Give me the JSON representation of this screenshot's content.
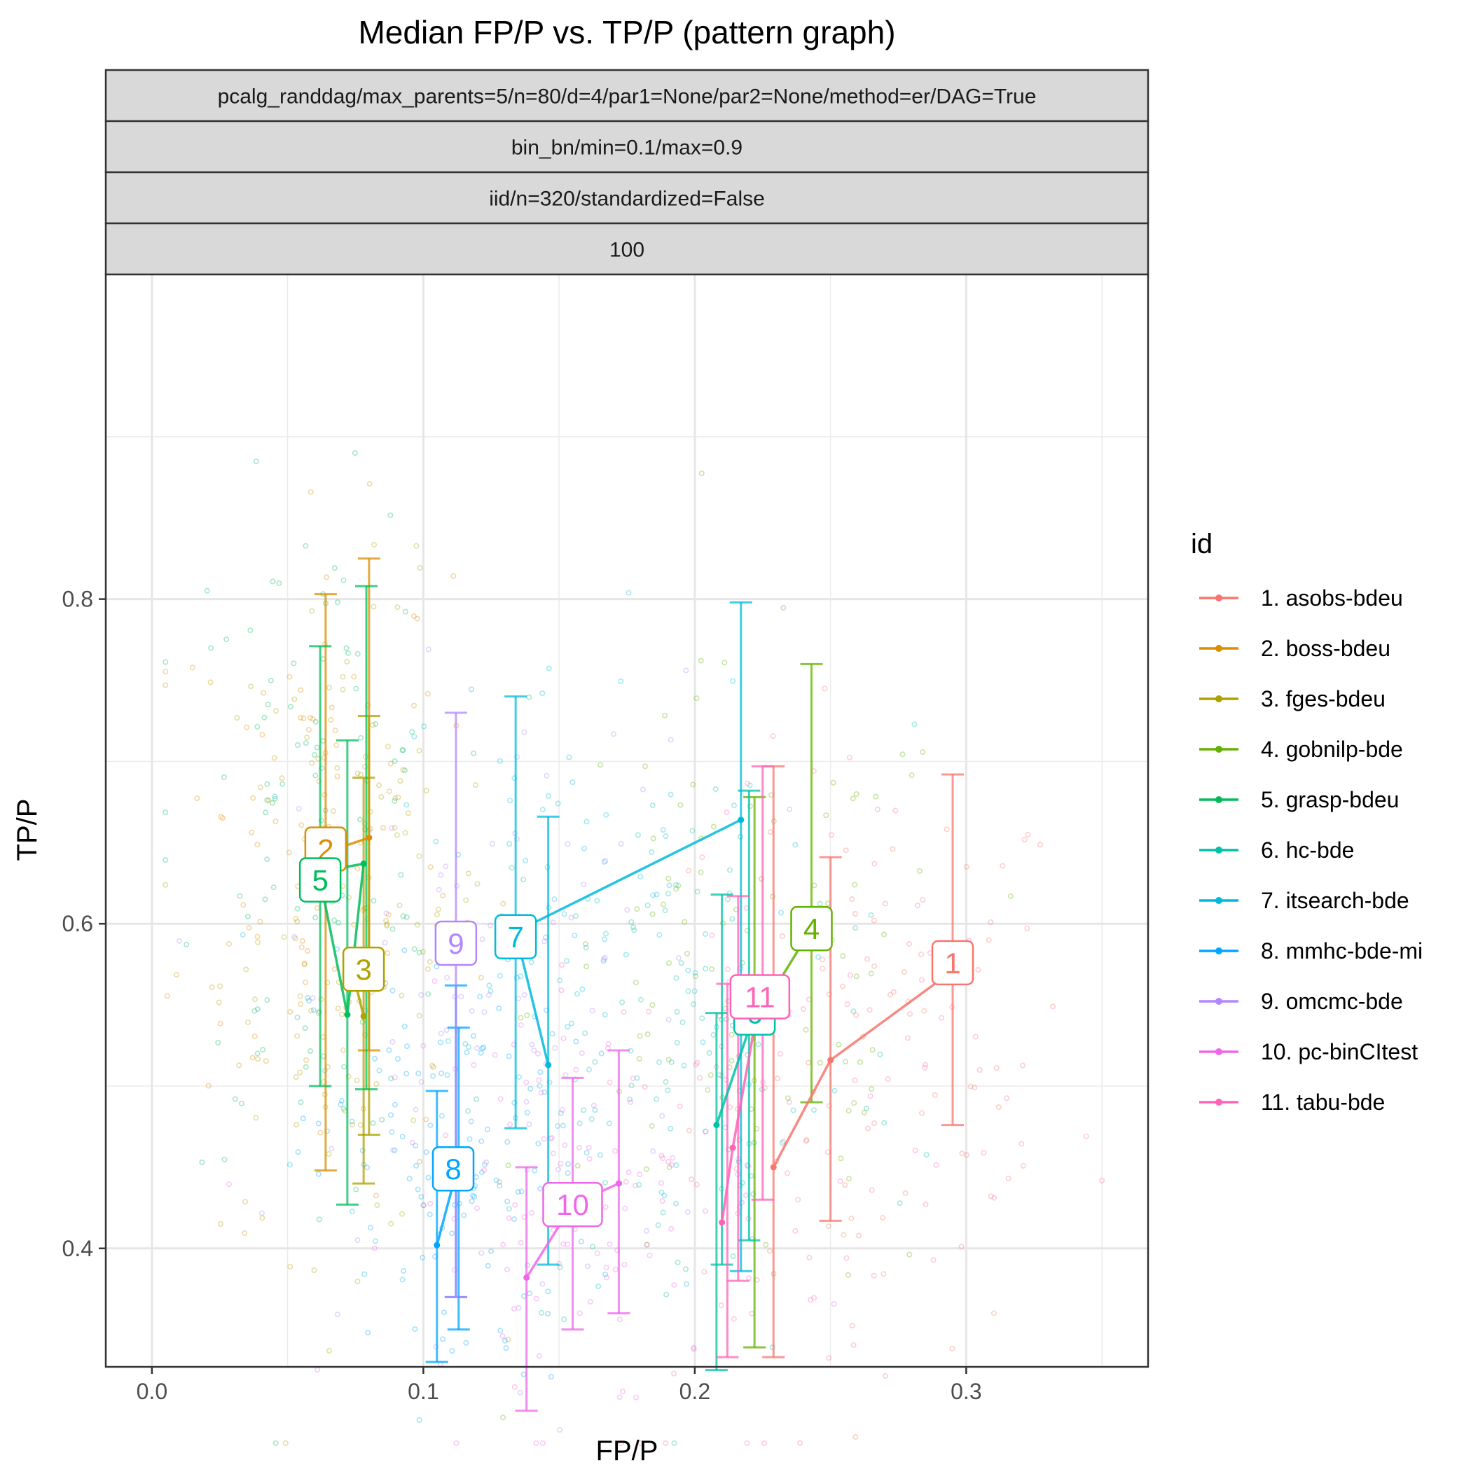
{
  "chart_data": {
    "type": "scatter",
    "title": "Median FP/P vs. TP/P (pattern graph)",
    "xlabel": "FP/P",
    "ylabel": "TP/P",
    "xlim": [
      -0.017,
      0.367
    ],
    "ylim": [
      0.327,
      1.0
    ],
    "x_ticks": [
      0.0,
      0.1,
      0.2,
      0.3
    ],
    "x_tick_labels": [
      "0.0",
      "0.1",
      "0.2",
      "0.3"
    ],
    "y_ticks": [
      0.4,
      0.6,
      0.8
    ],
    "y_tick_labels": [
      "0.4",
      "0.6",
      "0.8"
    ],
    "grid": true,
    "facet_strips": [
      "pcalg_randdag/max_parents=5/n=80/d=4/par1=None/par2=None/method=er/DAG=True",
      "bin_bn/min=0.1/max=0.9",
      "iid/n=320/standardized=False",
      "100"
    ],
    "legend": {
      "title": "id",
      "position": "right"
    },
    "series": [
      {
        "name": "1. asobs-bdeu",
        "label": "1",
        "color": "#F8766D",
        "path": [
          [
            0.229,
            0.45
          ],
          [
            0.25,
            0.516
          ],
          [
            0.295,
            0.571
          ]
        ],
        "errorbars": [
          [
            0.229,
            0.333,
            0.697
          ],
          [
            0.25,
            0.417,
            0.641
          ],
          [
            0.295,
            0.476,
            0.692
          ]
        ],
        "label_pos": [
          0.295,
          0.576
        ]
      },
      {
        "name": "2. boss-bdeu",
        "label": "2",
        "color": "#DB8E00",
        "path": [
          [
            0.064,
            0.644
          ],
          [
            0.08,
            0.653
          ]
        ],
        "errorbars": [
          [
            0.064,
            0.448,
            0.803
          ],
          [
            0.08,
            0.522,
            0.825
          ]
        ],
        "label_pos": [
          0.064,
          0.646
        ]
      },
      {
        "name": "3. fges-bdeu",
        "label": "3",
        "color": "#AEA200",
        "path": [
          [
            0.074,
            0.57
          ],
          [
            0.078,
            0.543
          ]
        ],
        "errorbars": [
          [
            0.078,
            0.44,
            0.69
          ],
          [
            0.08,
            0.47,
            0.728
          ]
        ],
        "label_pos": [
          0.078,
          0.572
        ]
      },
      {
        "name": "4. gobnilp-bde",
        "label": "4",
        "color": "#64B200",
        "path": [
          [
            0.222,
            0.54
          ],
          [
            0.243,
            0.597
          ]
        ],
        "errorbars": [
          [
            0.222,
            0.339,
            0.678
          ],
          [
            0.243,
            0.49,
            0.76
          ]
        ],
        "label_pos": [
          0.243,
          0.597
        ]
      },
      {
        "name": "5. grasp-bdeu",
        "label": "5",
        "color": "#00BD5C",
        "path": [
          [
            0.062,
            0.632
          ],
          [
            0.078,
            0.637
          ],
          [
            0.072,
            0.544
          ],
          [
            0.062,
            0.627
          ]
        ],
        "errorbars": [
          [
            0.062,
            0.5,
            0.771
          ],
          [
            0.072,
            0.427,
            0.713
          ],
          [
            0.079,
            0.498,
            0.808
          ]
        ],
        "label_pos": [
          0.062,
          0.627
        ]
      },
      {
        "name": "6. hc-bde",
        "label": "6",
        "color": "#00C1A7",
        "path": [
          [
            0.208,
            0.476
          ],
          [
            0.222,
            0.545
          ]
        ],
        "errorbars": [
          [
            0.208,
            0.325,
            0.545
          ],
          [
            0.21,
            0.39,
            0.618
          ],
          [
            0.22,
            0.405,
            0.682
          ]
        ],
        "label_pos": [
          0.222,
          0.545
        ]
      },
      {
        "name": "7. itsearch-bde",
        "label": "7",
        "color": "#00BADE",
        "path": [
          [
            0.146,
            0.513
          ],
          [
            0.134,
            0.595
          ],
          [
            0.217,
            0.664
          ]
        ],
        "errorbars": [
          [
            0.134,
            0.474,
            0.74
          ],
          [
            0.146,
            0.39,
            0.666
          ],
          [
            0.217,
            0.386,
            0.798
          ]
        ],
        "label_pos": [
          0.134,
          0.592
        ]
      },
      {
        "name": "8. mmhc-bde-mi",
        "label": "8",
        "color": "#00A6FF",
        "path": [
          [
            0.105,
            0.402
          ],
          [
            0.112,
            0.446
          ]
        ],
        "errorbars": [
          [
            0.105,
            0.33,
            0.497
          ],
          [
            0.113,
            0.35,
            0.536
          ],
          [
            0.112,
            0.37,
            0.562
          ]
        ],
        "label_pos": [
          0.111,
          0.449
        ]
      },
      {
        "name": "9. omcmc-bde",
        "label": "9",
        "color": "#B385FF",
        "path": [
          [
            0.112,
            0.589
          ]
        ],
        "errorbars": [
          [
            0.112,
            0.37,
            0.73
          ]
        ],
        "label_pos": [
          0.112,
          0.588
        ]
      },
      {
        "name": "10. pc-binCItest",
        "label": "10",
        "color": "#EF67EB",
        "path": [
          [
            0.138,
            0.382
          ],
          [
            0.155,
            0.427
          ],
          [
            0.172,
            0.44
          ]
        ],
        "errorbars": [
          [
            0.138,
            0.3,
            0.45
          ],
          [
            0.155,
            0.35,
            0.505
          ],
          [
            0.172,
            0.36,
            0.522
          ]
        ],
        "label_pos": [
          0.155,
          0.427
        ]
      },
      {
        "name": "11. tabu-bde",
        "label": "11",
        "color": "#FF63B6",
        "path": [
          [
            0.21,
            0.416
          ],
          [
            0.214,
            0.462
          ],
          [
            0.224,
            0.555
          ]
        ],
        "errorbars": [
          [
            0.212,
            0.333,
            0.563
          ],
          [
            0.216,
            0.38,
            0.617
          ],
          [
            0.225,
            0.43,
            0.697
          ]
        ],
        "label_pos": [
          0.224,
          0.555
        ]
      }
    ],
    "scatter_clouds": [
      {
        "series": 0,
        "n": 110,
        "cx": 0.27,
        "cy": 0.52,
        "sx": 0.035,
        "sy": 0.09
      },
      {
        "series": 1,
        "n": 130,
        "cx": 0.06,
        "cy": 0.64,
        "sx": 0.025,
        "sy": 0.1
      },
      {
        "series": 2,
        "n": 110,
        "cx": 0.075,
        "cy": 0.6,
        "sx": 0.025,
        "sy": 0.1
      },
      {
        "series": 3,
        "n": 110,
        "cx": 0.22,
        "cy": 0.55,
        "sx": 0.04,
        "sy": 0.1
      },
      {
        "series": 4,
        "n": 110,
        "cx": 0.06,
        "cy": 0.66,
        "sx": 0.025,
        "sy": 0.1
      },
      {
        "series": 5,
        "n": 100,
        "cx": 0.2,
        "cy": 0.52,
        "sx": 0.04,
        "sy": 0.1
      },
      {
        "series": 6,
        "n": 110,
        "cx": 0.15,
        "cy": 0.57,
        "sx": 0.04,
        "sy": 0.1
      },
      {
        "series": 7,
        "n": 120,
        "cx": 0.11,
        "cy": 0.45,
        "sx": 0.025,
        "sy": 0.07
      },
      {
        "series": 8,
        "n": 90,
        "cx": 0.13,
        "cy": 0.55,
        "sx": 0.04,
        "sy": 0.1
      },
      {
        "series": 9,
        "n": 100,
        "cx": 0.16,
        "cy": 0.43,
        "sx": 0.035,
        "sy": 0.06
      },
      {
        "series": 10,
        "n": 80,
        "cx": 0.23,
        "cy": 0.47,
        "sx": 0.045,
        "sy": 0.09
      }
    ]
  }
}
